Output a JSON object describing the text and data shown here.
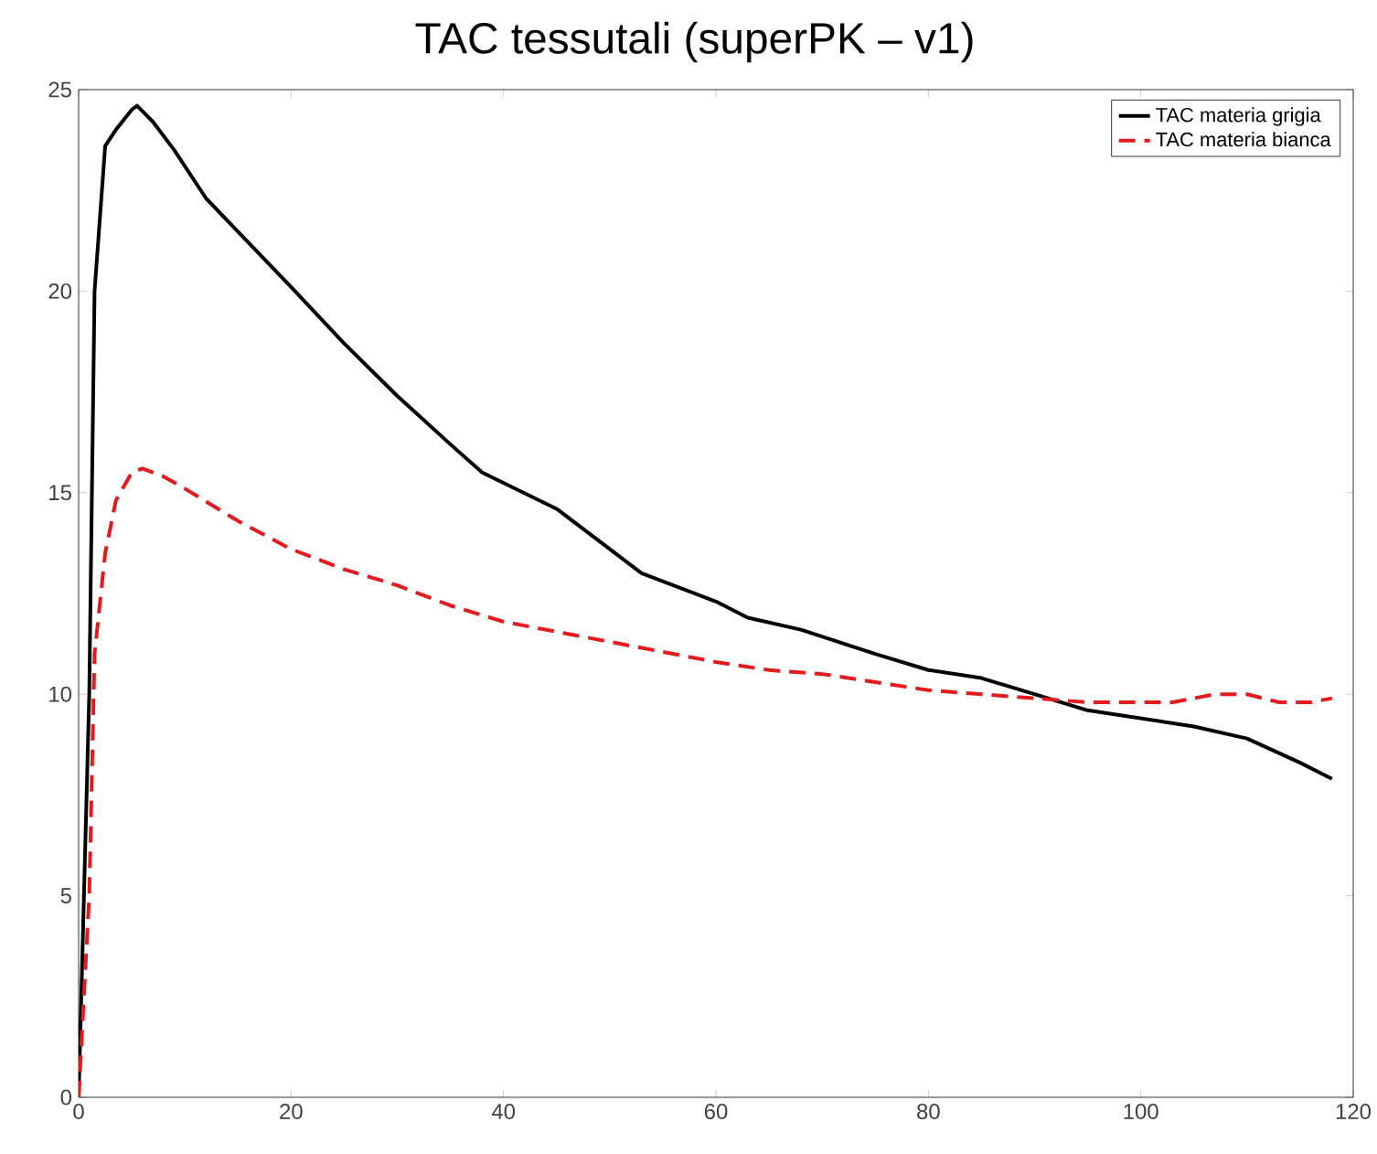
{
  "chart_data": {
    "type": "line",
    "title": "TAC tessutali (superPK – v1)",
    "xlim": [
      0,
      120
    ],
    "xticks": [
      0,
      20,
      40,
      60,
      80,
      100,
      120
    ],
    "ylim": [
      0,
      25
    ],
    "yticks": [
      0,
      5,
      10,
      15,
      20,
      25
    ],
    "legend": "top right",
    "grid": false,
    "marker": "none",
    "series": [
      {
        "name": "TAC materia grigia",
        "color": "#000000",
        "line_style": "solid",
        "x": [
          0,
          1,
          1.5,
          2.5,
          3.5,
          5,
          5.5,
          7,
          9,
          12,
          16,
          20,
          25,
          30,
          35,
          38,
          45,
          53,
          60,
          63,
          68,
          75,
          80,
          85,
          90,
          95,
          100,
          105,
          110,
          115,
          118
        ],
        "values": [
          0,
          10,
          20,
          23.6,
          24,
          24.5,
          24.6,
          24.2,
          23.5,
          22.3,
          21.2,
          20.1,
          18.7,
          17.4,
          16.2,
          15.5,
          14.6,
          13.0,
          12.3,
          11.9,
          11.6,
          11.0,
          10.6,
          10.4,
          10.0,
          9.6,
          9.4,
          9.2,
          8.9,
          8.3,
          7.9
        ]
      },
      {
        "name": "TAC materia bianca",
        "color": "#e41a1c",
        "line_style": "dashed",
        "x": [
          0,
          1,
          1.5,
          2.5,
          3.5,
          5,
          6,
          8,
          10,
          15,
          20,
          25,
          30,
          35,
          40,
          50,
          60,
          65,
          70,
          80,
          90,
          95,
          100,
          103,
          107,
          110,
          113,
          116,
          118
        ],
        "values": [
          0,
          5,
          11,
          13.5,
          14.8,
          15.5,
          15.6,
          15.4,
          15.1,
          14.3,
          13.6,
          13.1,
          12.7,
          12.2,
          11.8,
          11.3,
          10.8,
          10.6,
          10.5,
          10.1,
          9.9,
          9.8,
          9.8,
          9.8,
          10.0,
          10.0,
          9.8,
          9.8,
          9.9
        ]
      }
    ]
  }
}
